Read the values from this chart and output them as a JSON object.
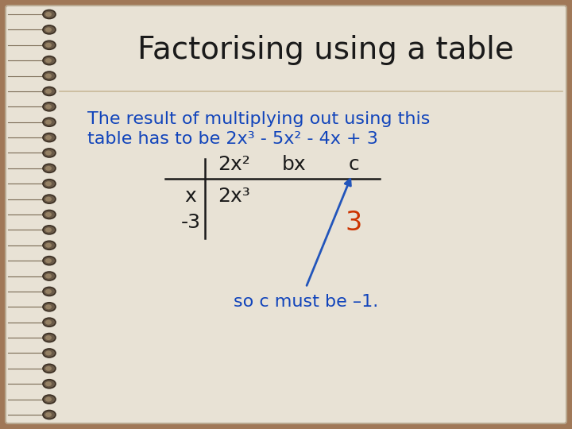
{
  "title": "Factorising using a table",
  "title_color": "#1a1a1a",
  "title_fontsize": 28,
  "bg_outer": "#a07858",
  "bg_notebook": "#e8e2d5",
  "text_blue": "#1144bb",
  "text_black": "#1a1a1a",
  "text_orange": "#cc3300",
  "text_arrow_blue": "#2255bb",
  "body_text_line1": "The result of multiplying out using this",
  "body_text_line2": "table has to be 2x³ - 5x² - 4x + 3",
  "col_header_1": "2x²",
  "col_header_2": "bx",
  "col_header_3": "c",
  "row_header_1": "x",
  "row_header_2": "-3",
  "cell_11": "2x³",
  "cell_23": "3",
  "footer_text": "so c must be –1.",
  "body_fontsize": 16,
  "table_fontsize": 18,
  "footer_fontsize": 16
}
